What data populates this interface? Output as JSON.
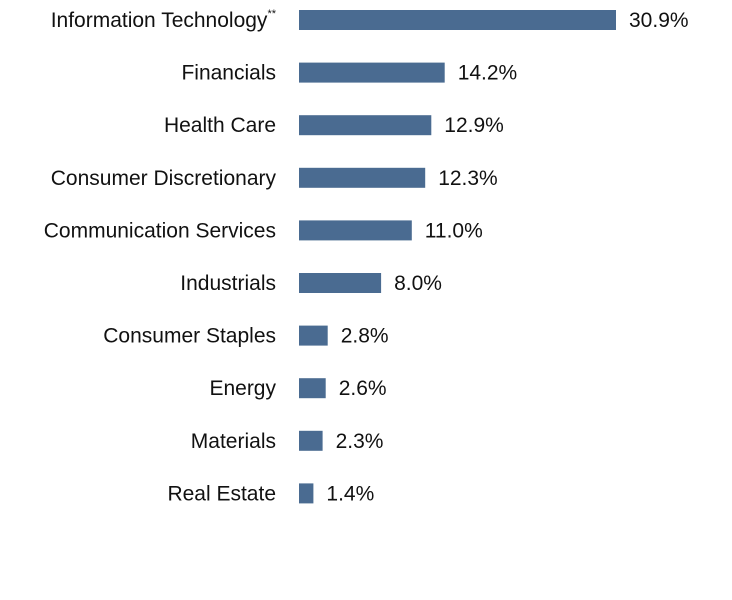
{
  "chart_data": {
    "type": "bar",
    "orientation": "horizontal",
    "title": "",
    "xlabel": "",
    "ylabel": "",
    "bar_color": "#4a6b91",
    "value_suffix": "%",
    "xlim": [
      0,
      30.9
    ],
    "grid": false,
    "legend": "none",
    "categories": [
      "Information Technology",
      "Financials",
      "Health Care",
      "Consumer Discretionary",
      "Communication Services",
      "Industrials",
      "Consumer Staples",
      "Energy",
      "Materials",
      "Real Estate"
    ],
    "category_footnotes": [
      "**",
      "",
      "",
      "",
      "",
      "",
      "",
      "",
      "",
      ""
    ],
    "values": [
      30.9,
      14.2,
      12.9,
      12.3,
      11.0,
      8.0,
      2.8,
      2.6,
      2.3,
      1.4
    ],
    "data_labels": [
      "30.9%",
      "14.2%",
      "12.9%",
      "12.3%",
      "11.0%",
      "8.0%",
      "2.8%",
      "2.6%",
      "2.3%",
      "1.4%"
    ]
  }
}
